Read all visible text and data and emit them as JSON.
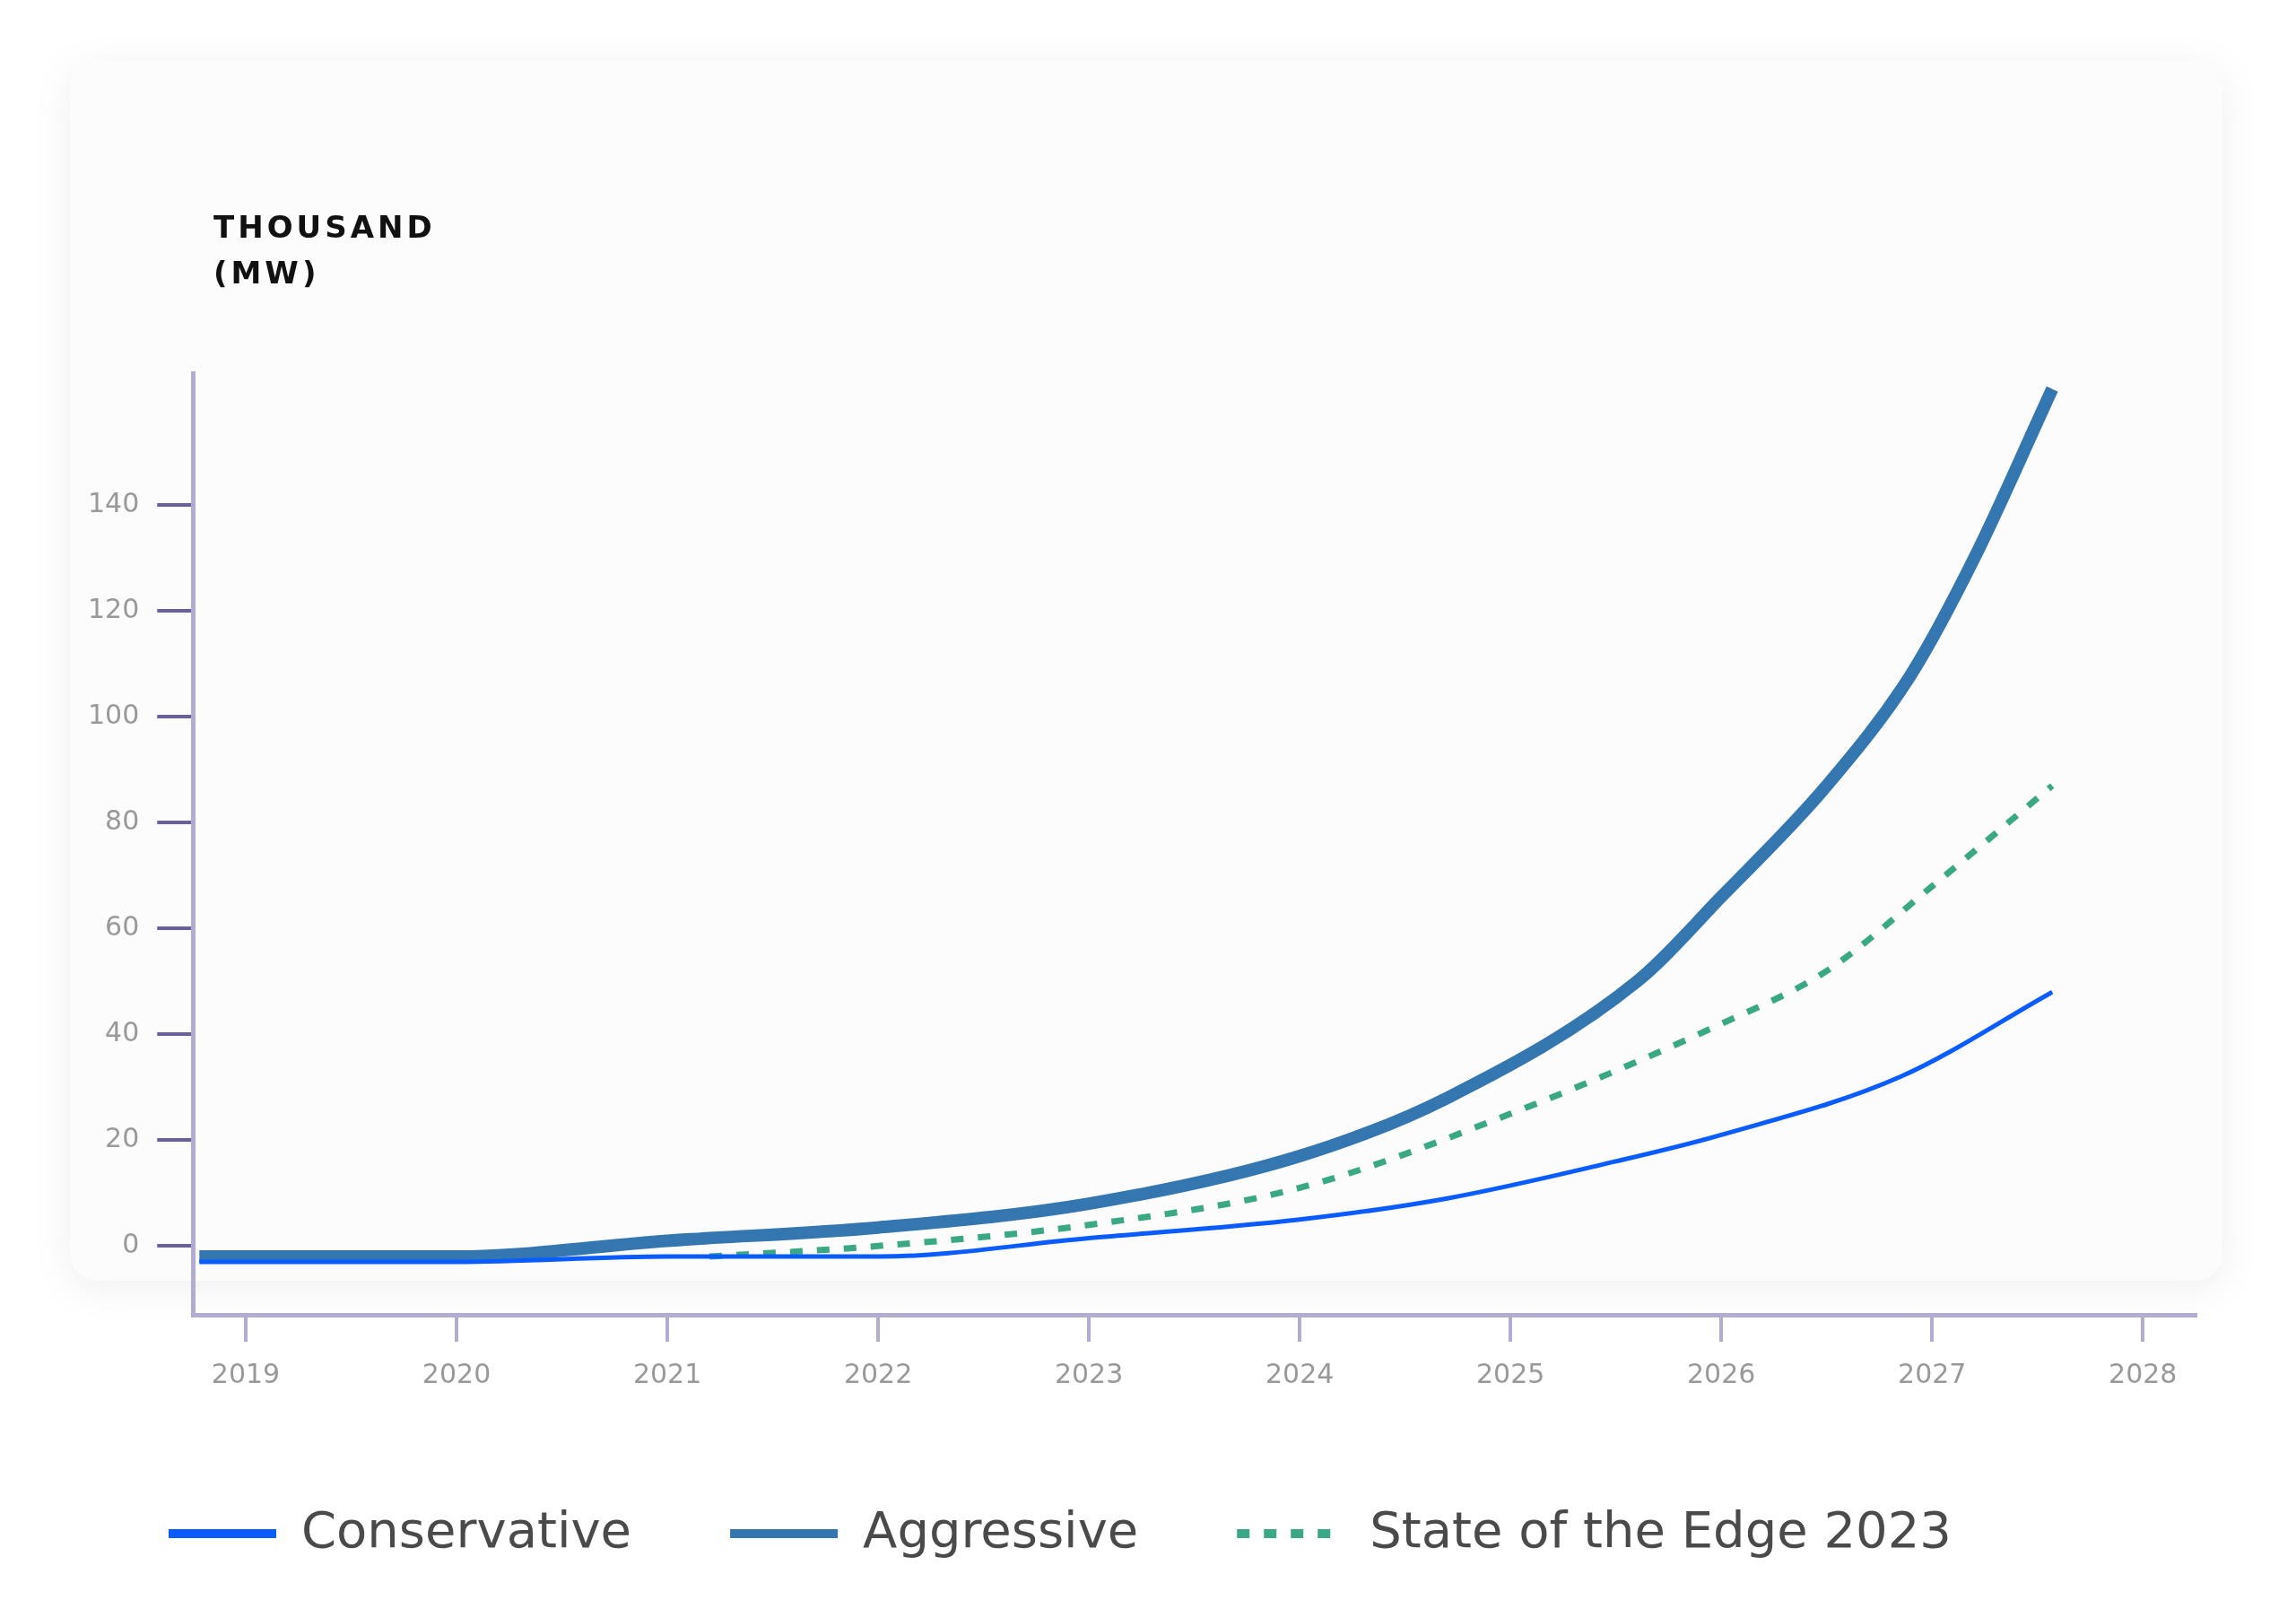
{
  "chart_data": {
    "type": "line",
    "ylabel": "THOUSAND (MW)",
    "xlim": [
      2018.75,
      2028.25
    ],
    "xticks": [
      2019,
      2020,
      2021,
      2022,
      2023,
      2024,
      2025,
      2026,
      2027,
      2028
    ],
    "ylim": [
      -13,
      165
    ],
    "yticks": [
      0,
      20,
      40,
      60,
      80,
      100,
      120,
      140
    ],
    "grid": false,
    "legend": "bottom",
    "marker": "none",
    "series": [
      {
        "name": "Conservative",
        "color": "#0a5cff",
        "line_style": "solid",
        "x": [
          2018.78,
          2020,
          2021,
          2022,
          2023,
          2024,
          2024.7,
          2025.5,
          2026,
          2026.85,
          2027.57
        ],
        "values": [
          -3,
          -3,
          -2,
          -2,
          1.5,
          5,
          9,
          16,
          21,
          32,
          48
        ]
      },
      {
        "name": "Aggressive",
        "color": "#3376b0",
        "line_style": "solid",
        "x": [
          2018.78,
          2020,
          2021,
          2022,
          2023,
          2024,
          2024.7,
          2025.6,
          2026,
          2026.5,
          2026.9,
          2027.2,
          2027.57
        ],
        "values": [
          -2,
          -2,
          1,
          3.5,
          8,
          17,
          28,
          50,
          66,
          87,
          108,
          130,
          162
        ]
      },
      {
        "name": "State of the Edge 2023",
        "color": "#3aa884",
        "line_style": "dashed",
        "x": [
          2021.2,
          2022,
          2023,
          2024,
          2025,
          2026,
          2026.5,
          2027,
          2027.57
        ],
        "values": [
          -2,
          0,
          4,
          11,
          25,
          42,
          52,
          68,
          87
        ]
      }
    ]
  }
}
